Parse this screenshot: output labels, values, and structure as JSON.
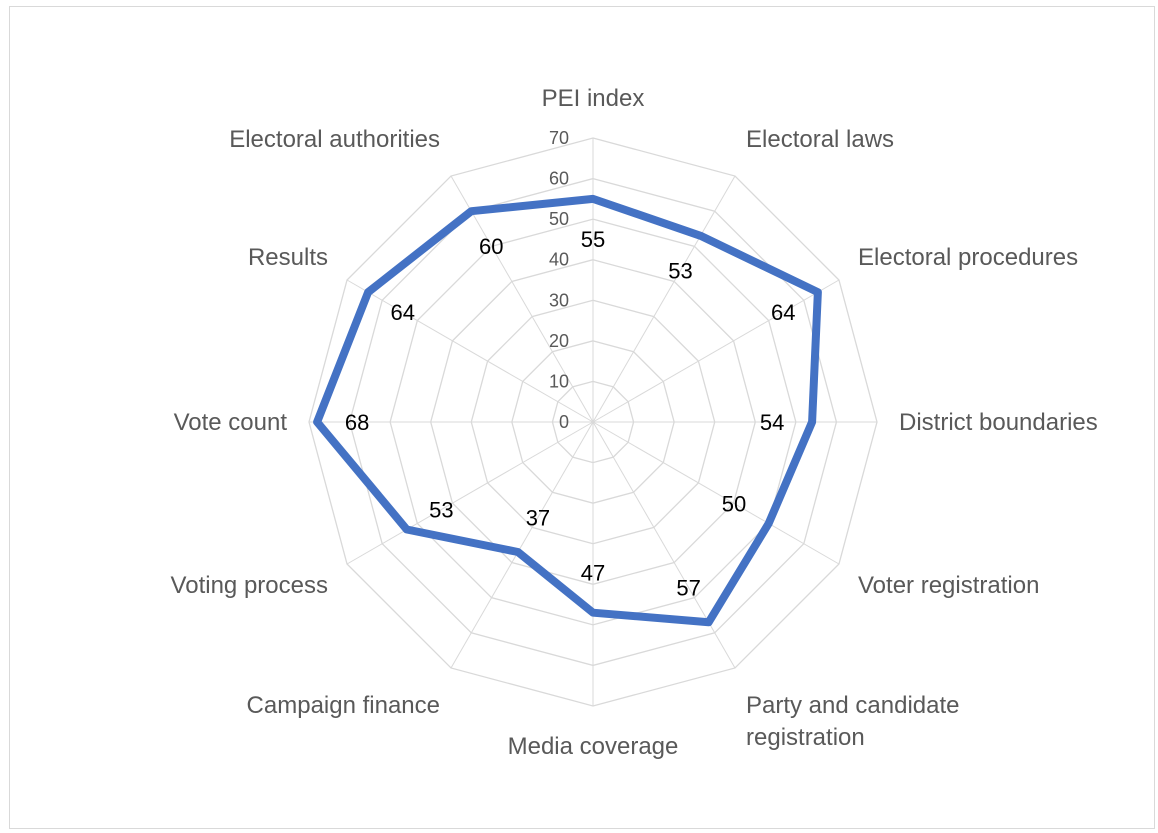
{
  "chart_data": {
    "type": "radar",
    "title": "",
    "categories": [
      [
        "PEI index"
      ],
      [
        "Electoral laws"
      ],
      [
        "Electoral procedures"
      ],
      [
        "District boundaries"
      ],
      [
        "Voter registration"
      ],
      [
        "Party and candidate",
        "registration"
      ],
      [
        "Media coverage"
      ],
      [
        "Campaign finance"
      ],
      [
        "Voting process"
      ],
      [
        "Vote count"
      ],
      [
        "Results"
      ],
      [
        "Electoral authorities"
      ]
    ],
    "series": [
      {
        "values": [
          55,
          53,
          64,
          54,
          50,
          57,
          47,
          37,
          53,
          68,
          64,
          60
        ],
        "color": "#4472c4"
      }
    ],
    "r_range": [
      0,
      70
    ],
    "r_ticks": [
      "0",
      "10",
      "20",
      "30",
      "40",
      "50",
      "60",
      "70"
    ],
    "data_labels": [
      "55",
      "53",
      "64",
      "54",
      "50",
      "57",
      "47",
      "37",
      "53",
      "68",
      "64",
      "60"
    ],
    "gridlines": true,
    "legend": "none"
  }
}
